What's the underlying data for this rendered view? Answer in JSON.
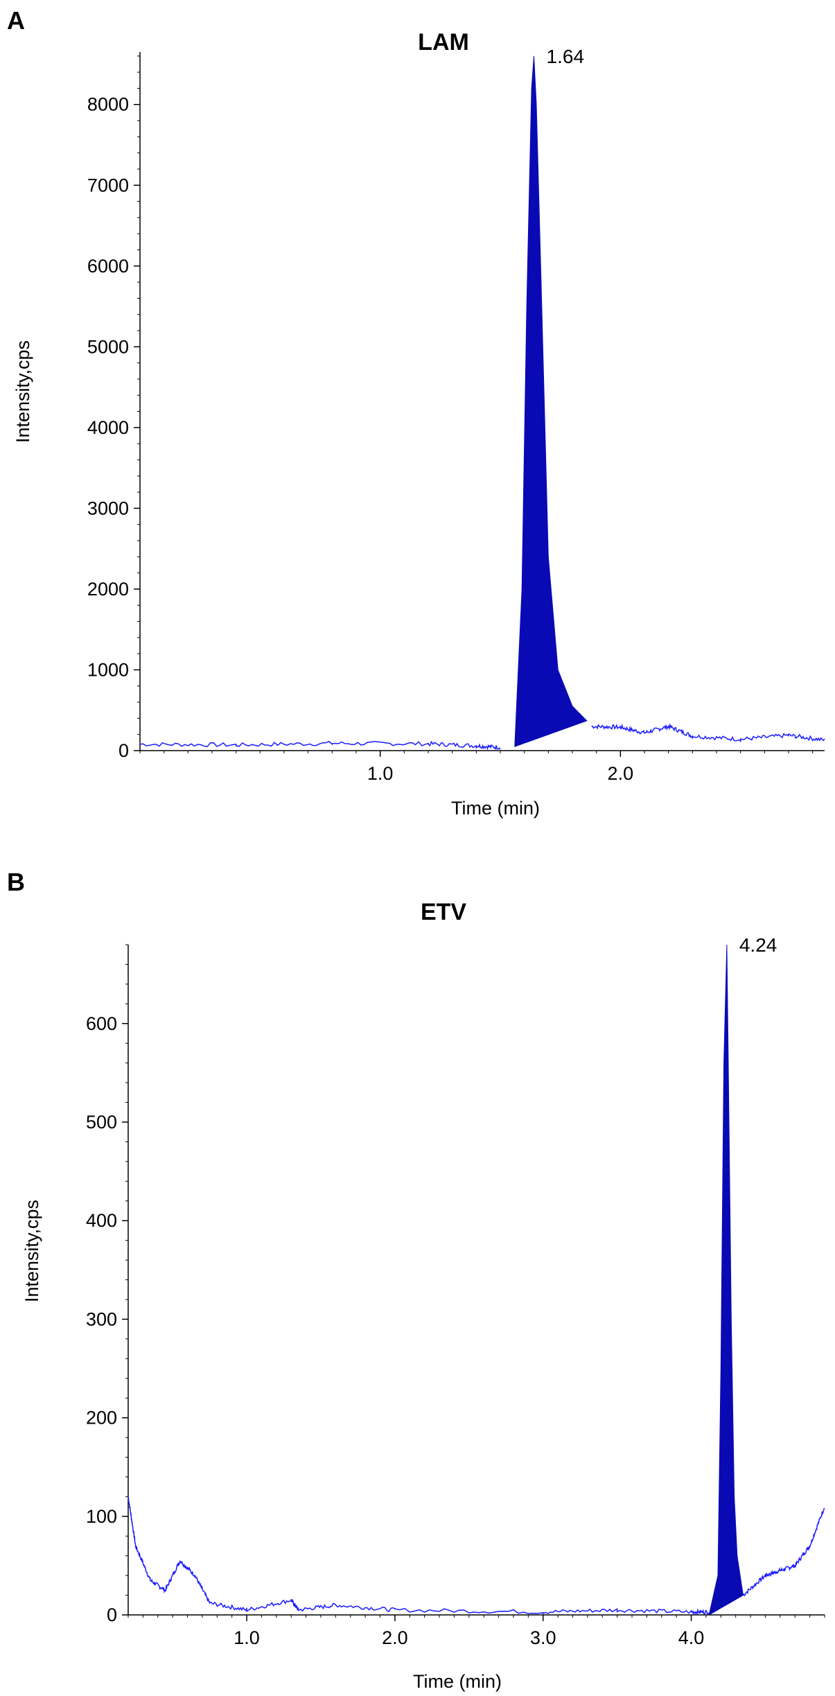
{
  "chart_data": [
    {
      "panel": "A",
      "type": "line",
      "title": "LAM",
      "xlabel": "Time (min)",
      "ylabel": "Intensity,cps",
      "xlim": [
        0.0,
        2.85
      ],
      "ylim": [
        0,
        8650
      ],
      "x_ticks": [
        1.0,
        2.0
      ],
      "x_tick_labels": [
        "1.0",
        "2.0"
      ],
      "y_ticks": [
        0,
        1000,
        2000,
        3000,
        4000,
        5000,
        6000,
        7000,
        8000
      ],
      "y_tick_labels": [
        "0",
        "1000",
        "2000",
        "3000",
        "4000",
        "5000",
        "6000",
        "7000",
        "8000"
      ],
      "line_color": "#1a1aff",
      "fill_color": "#0a0ab4",
      "grid": false,
      "baseline": {
        "x": [
          0.0,
          0.4,
          0.8,
          1.2,
          1.4,
          1.5
        ],
        "y": [
          80,
          70,
          90,
          85,
          60,
          40
        ]
      },
      "tail": {
        "x": [
          1.88,
          2.0,
          2.1,
          2.2,
          2.3,
          2.5,
          2.7,
          2.85
        ],
        "y": [
          300,
          290,
          220,
          300,
          180,
          140,
          190,
          130
        ]
      },
      "peak": {
        "label": "1.64",
        "x": [
          1.56,
          1.59,
          1.61,
          1.63,
          1.64,
          1.65,
          1.67,
          1.7,
          1.74,
          1.8,
          1.86
        ],
        "y": [
          50,
          2000,
          5500,
          8200,
          8600,
          8000,
          5800,
          2400,
          1000,
          550,
          370
        ],
        "integration_baseline": {
          "x": [
            1.56,
            1.86
          ],
          "y": [
            50,
            370
          ]
        }
      }
    },
    {
      "panel": "B",
      "type": "line",
      "title": "ETV",
      "xlabel": "Time (min)",
      "ylabel": "Intensity,cps",
      "xlim": [
        0.2,
        4.9
      ],
      "ylim": [
        0,
        680
      ],
      "x_ticks": [
        1.0,
        2.0,
        3.0,
        4.0
      ],
      "x_tick_labels": [
        "1.0",
        "2.0",
        "3.0",
        "4.0"
      ],
      "y_ticks": [
        0,
        100,
        200,
        300,
        400,
        500,
        600
      ],
      "y_tick_labels": [
        "0",
        "100",
        "200",
        "300",
        "400",
        "500",
        "600"
      ],
      "line_color": "#1a1aff",
      "fill_color": "#0a0ab4",
      "grid": false,
      "baseline": {
        "x": [
          0.2,
          0.25,
          0.35,
          0.45,
          0.55,
          0.65,
          0.75,
          1.0,
          1.3,
          1.35,
          1.6,
          2.0,
          3.0,
          3.5,
          4.0,
          4.12
        ],
        "y": [
          120,
          70,
          35,
          25,
          55,
          40,
          12,
          5,
          15,
          5,
          10,
          5,
          3,
          5,
          3,
          3
        ]
      },
      "tail": {
        "x": [
          4.35,
          4.5,
          4.6,
          4.7,
          4.8,
          4.9
        ],
        "y": [
          20,
          40,
          45,
          50,
          70,
          110
        ]
      },
      "peak": {
        "label": "4.24",
        "x": [
          4.12,
          4.18,
          4.2,
          4.22,
          4.24,
          4.25,
          4.27,
          4.29,
          4.31,
          4.35
        ],
        "y": [
          0,
          40,
          250,
          560,
          680,
          560,
          300,
          120,
          60,
          20
        ],
        "integration_baseline": {
          "x": [
            4.12,
            4.35
          ],
          "y": [
            0,
            20
          ]
        }
      }
    }
  ]
}
